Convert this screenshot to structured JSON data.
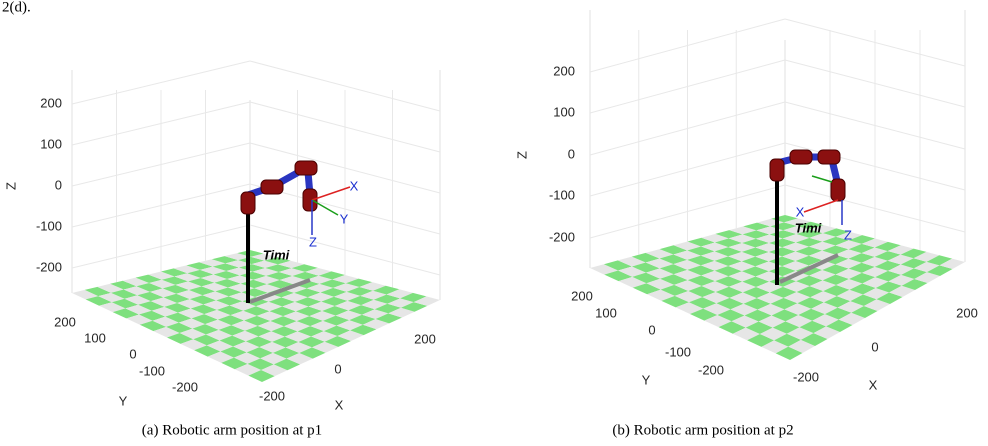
{
  "intro_text": "2(d).",
  "panels": [
    {
      "z_label": "Z",
      "z_ticks": [
        200,
        100,
        0,
        -100,
        -200
      ],
      "y_label": "Y",
      "y_ticks": [
        200,
        100,
        0,
        -100,
        -200
      ],
      "x_label": "X",
      "x_ticks": [
        -200,
        0,
        200
      ],
      "frame_labels": [
        "X",
        "Y",
        "Z"
      ],
      "robot_label": "Timi",
      "caption": "(a) Robotic arm position at p1"
    },
    {
      "z_label": "Z",
      "z_ticks": [
        200,
        100,
        0,
        -100,
        -200
      ],
      "y_label": "Y",
      "y_ticks": [
        200,
        100,
        0,
        -100,
        -200
      ],
      "x_label": "X",
      "x_ticks": [
        -200,
        0,
        200
      ],
      "frame_labels": [
        "X",
        "Z"
      ],
      "robot_label": "Timi",
      "caption": "(b) Robotic arm position at p2"
    }
  ]
}
